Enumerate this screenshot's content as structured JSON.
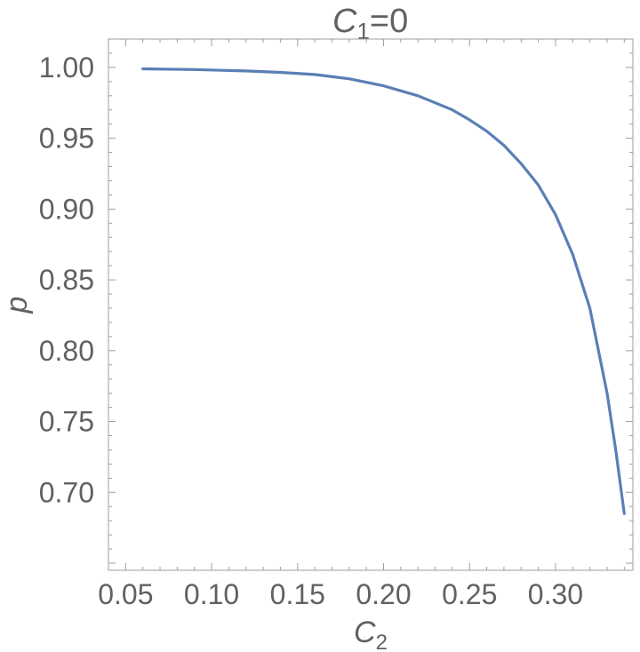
{
  "chart_data": {
    "type": "line",
    "title": {
      "var": "C",
      "sub": "1",
      "rest": "=0"
    },
    "xlabel": {
      "var": "C",
      "sub": "2"
    },
    "ylabel": "p",
    "xlim": [
      0.04,
      0.345
    ],
    "ylim": [
      0.645,
      1.02
    ],
    "x_ticks": [
      "0.05",
      "0.10",
      "0.15",
      "0.20",
      "0.25",
      "0.30"
    ],
    "y_ticks": [
      "0.70",
      "0.75",
      "0.80",
      "0.85",
      "0.90",
      "0.95",
      "1.00"
    ],
    "grid": false,
    "line_color": "#5a7fb5",
    "series": [
      {
        "x": [
          0.06,
          0.09,
          0.12,
          0.14,
          0.16,
          0.18,
          0.2,
          0.22,
          0.24,
          0.25,
          0.26,
          0.27,
          0.28,
          0.29,
          0.3,
          0.31,
          0.32,
          0.33,
          0.335,
          0.34
        ],
        "y": [
          0.999,
          0.9985,
          0.9975,
          0.9965,
          0.995,
          0.992,
          0.987,
          0.98,
          0.97,
          0.963,
          0.955,
          0.945,
          0.932,
          0.917,
          0.896,
          0.868,
          0.83,
          0.77,
          0.73,
          0.685
        ]
      }
    ]
  }
}
